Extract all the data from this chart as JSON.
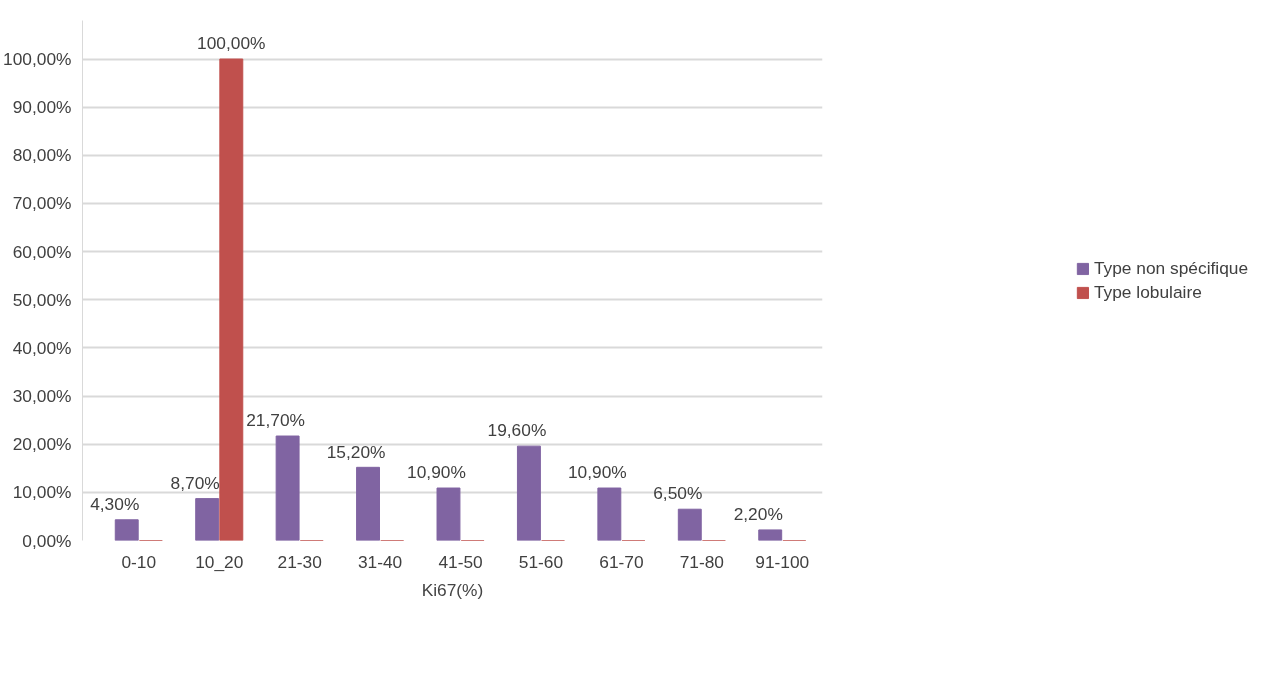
{
  "chart_data": {
    "type": "bar",
    "xlabel": "Ki67(%)",
    "categories": [
      "0-10",
      "10_20",
      "21-30",
      "31-40",
      "41-50",
      "51-60",
      "61-70",
      "71-80",
      "91-100"
    ],
    "series": [
      {
        "name": "Type non spécifique",
        "color": "#8064a2",
        "values": [
          4.3,
          8.7,
          21.7,
          15.2,
          10.9,
          19.6,
          10.9,
          6.5,
          2.2
        ],
        "value_labels": [
          "4,30%",
          "8,70%",
          "21,70%",
          "15,20%",
          "10,90%",
          "19,60%",
          "10,90%",
          "6,50%",
          "2,20%"
        ]
      },
      {
        "name": "Type lobulaire",
        "color": "#c0504d",
        "values": [
          0,
          100,
          0,
          0,
          0,
          0,
          0,
          0,
          0
        ],
        "value_labels": [
          null,
          "100,00%",
          null,
          null,
          null,
          null,
          null,
          null,
          null
        ]
      }
    ],
    "ylim": [
      0,
      108
    ],
    "yticks": [
      {
        "value": 0,
        "label": "0,00%"
      },
      {
        "value": 10,
        "label": "10,00%"
      },
      {
        "value": 20,
        "label": "20,00%"
      },
      {
        "value": 30,
        "label": "30,00%"
      },
      {
        "value": 40,
        "label": "40,00%"
      },
      {
        "value": 50,
        "label": "50,00%"
      },
      {
        "value": 60,
        "label": "60,00%"
      },
      {
        "value": 70,
        "label": "70,00%"
      },
      {
        "value": 80,
        "label": "80,00%"
      },
      {
        "value": 90,
        "label": "90,00%"
      },
      {
        "value": 100,
        "label": "100,00%"
      }
    ],
    "grid": "y",
    "legend": "right"
  }
}
